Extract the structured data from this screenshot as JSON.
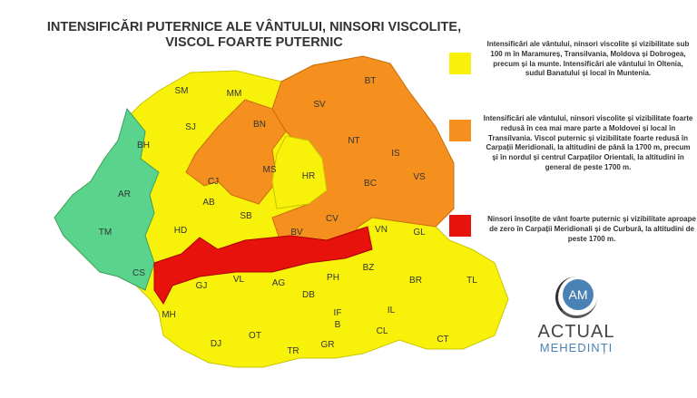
{
  "title": {
    "line1": "INTENSIFICĂRI PUTERNICE ALE VÂNTULUI, NINSORI VISCOLITE,",
    "line2": "VISCOL FOARTE PUTERNIC"
  },
  "colors": {
    "green": "#5ad48c",
    "yellow": "#f8f20a",
    "orange": "#f5901e",
    "red": "#e8120c"
  },
  "counties": [
    "SM",
    "MM",
    "BH",
    "SJ",
    "BN",
    "CJ",
    "MS",
    "HR",
    "SV",
    "BT",
    "NT",
    "IS",
    "BC",
    "VS",
    "AR",
    "TM",
    "AB",
    "SB",
    "HD",
    "CV",
    "BV",
    "VN",
    "GL",
    "CS",
    "GJ",
    "VL",
    "AG",
    "DB",
    "PH",
    "BZ",
    "BR",
    "TL",
    "MH",
    "DJ",
    "OT",
    "TR",
    "IF",
    "B",
    "GR",
    "CL",
    "IL",
    "CT"
  ],
  "legend": [
    {
      "level": "yellow",
      "text": "Intensificări ale vântului, ninsori viscolite și vizibilitate sub 100 m în Maramureș, Transilvania, Moldova și Dobrogea, precum și la munte. Intensificări ale vântului în Oltenia, sudul Banatului și local în Muntenia."
    },
    {
      "level": "orange",
      "text": "Intensificări ale vântului, ninsori viscolite și vizibilitate foarte redusă în cea mai mare parte a Moldovei și local în Transilvania. Viscol puternic și vizibilitate foarte redusă în Carpații Meridionali, la altitudini de până la 1700 m, precum și în nordul și centrul Carpaților Orientali, la altitudini în general de peste 1700 m."
    },
    {
      "level": "red",
      "text": "Ninsori însoțite de vânt foarte puternic și vizibilitate aproape de zero în Carpații Meridionali și de Curbură, la altitudini de peste 1700 m."
    }
  ],
  "logo": {
    "initials": "AM",
    "line1": "ACTUAL",
    "line2": "MEHEDINȚI"
  }
}
